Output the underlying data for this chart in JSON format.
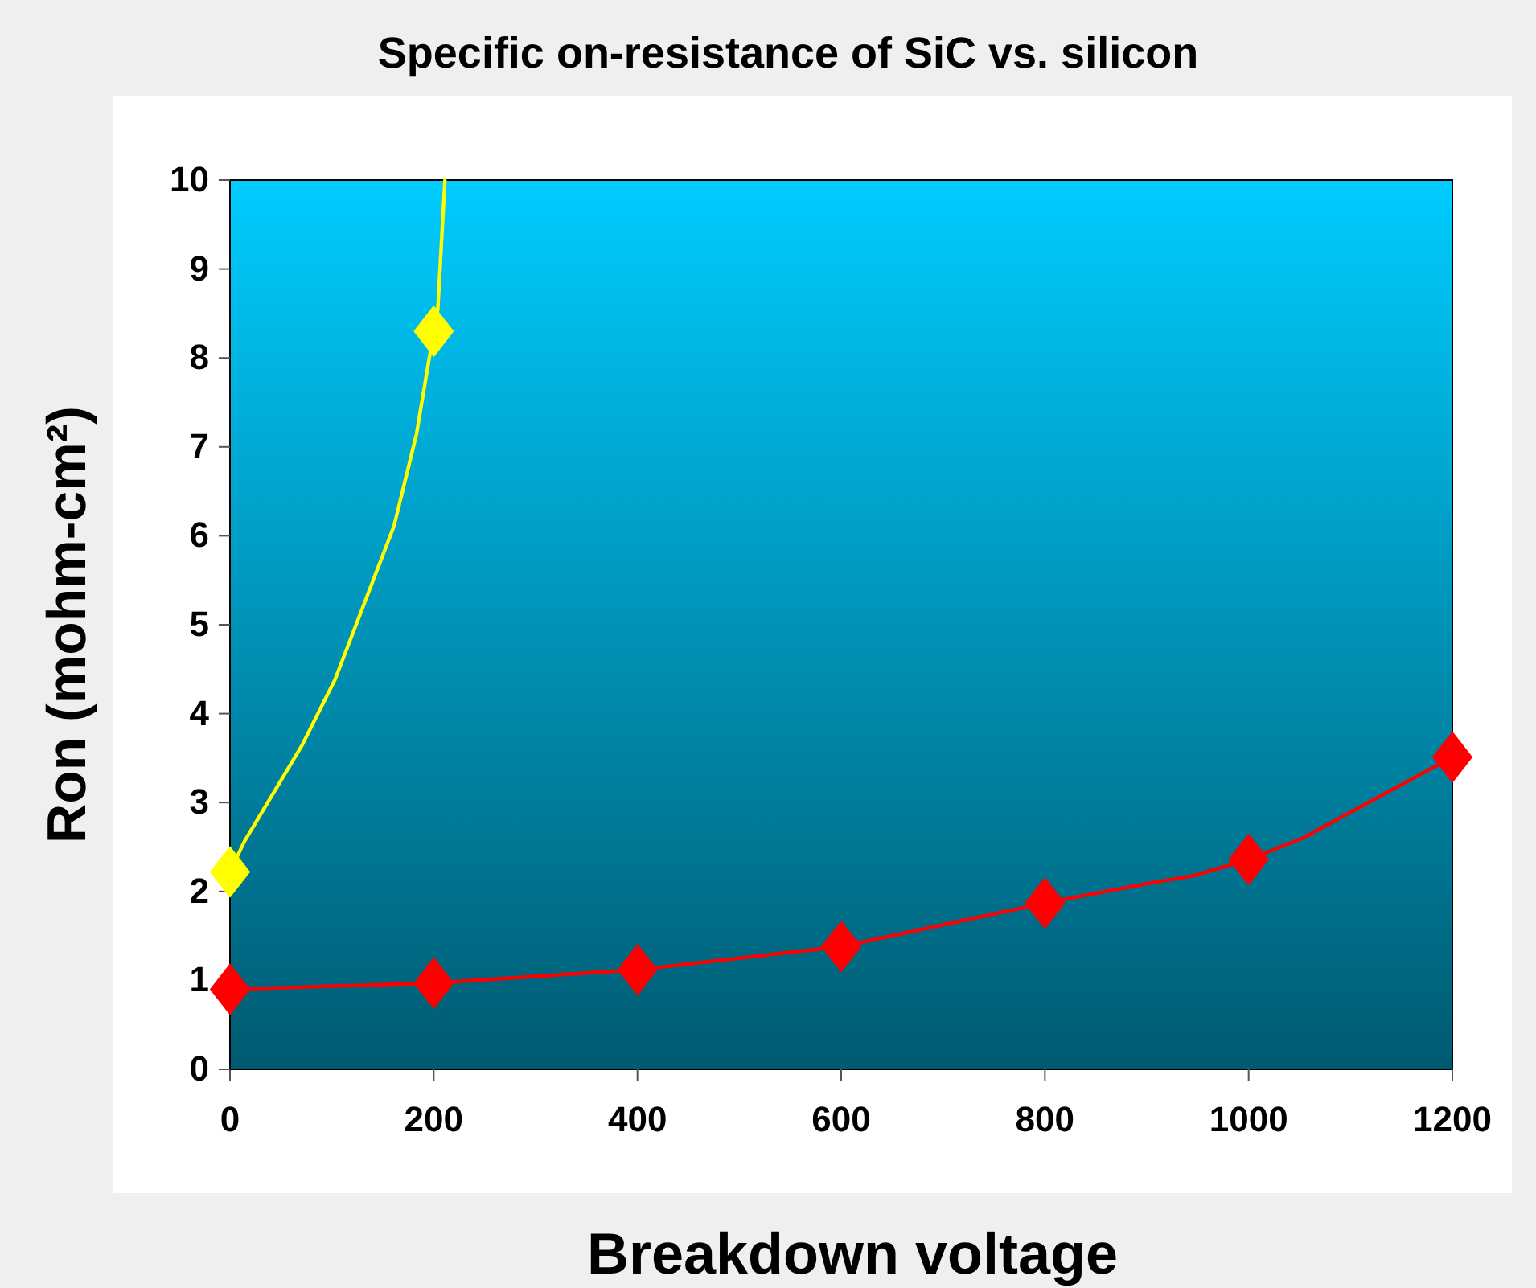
{
  "chart_data": {
    "type": "line",
    "title": "Specific on-resistance of SiC vs. silicon",
    "xlabel": "Breakdown voltage",
    "ylabel": "Ron (mohm-cm²)",
    "xlim": [
      0,
      1200
    ],
    "xticks": [
      0,
      200,
      400,
      600,
      800,
      1000,
      1200
    ],
    "ylim": [
      0,
      10
    ],
    "yticks": [
      0,
      1,
      2,
      3,
      4,
      5,
      6,
      7,
      8,
      9,
      10
    ],
    "grid": false,
    "series": [
      {
        "color": "#ffff00",
        "marker": "none",
        "x": [
          0,
          14,
          71,
          103,
          161,
          183,
          200,
          204,
          211
        ],
        "values": [
          2.22,
          2.56,
          3.65,
          4.38,
          6.11,
          7.14,
          8.3,
          8.55,
          10
        ]
      },
      {
        "type": "scatter",
        "color": "#ffff00",
        "marker": "diamond",
        "x": [
          0,
          200
        ],
        "values": [
          2.22,
          8.3
        ]
      },
      {
        "color": "#ff0000",
        "marker": "none",
        "x": [
          0,
          200,
          400,
          600,
          800,
          897,
          947,
          1000,
          1053,
          1200
        ],
        "values": [
          0.9,
          0.97,
          1.12,
          1.38,
          1.87,
          2.08,
          2.18,
          2.36,
          2.6,
          3.51
        ]
      },
      {
        "type": "scatter",
        "color": "#ff0000",
        "marker": "diamond",
        "x": [
          0,
          200,
          400,
          600,
          800,
          1000,
          1200
        ],
        "values": [
          0.9,
          0.97,
          1.12,
          1.38,
          1.87,
          2.36,
          3.51
        ]
      }
    ]
  }
}
